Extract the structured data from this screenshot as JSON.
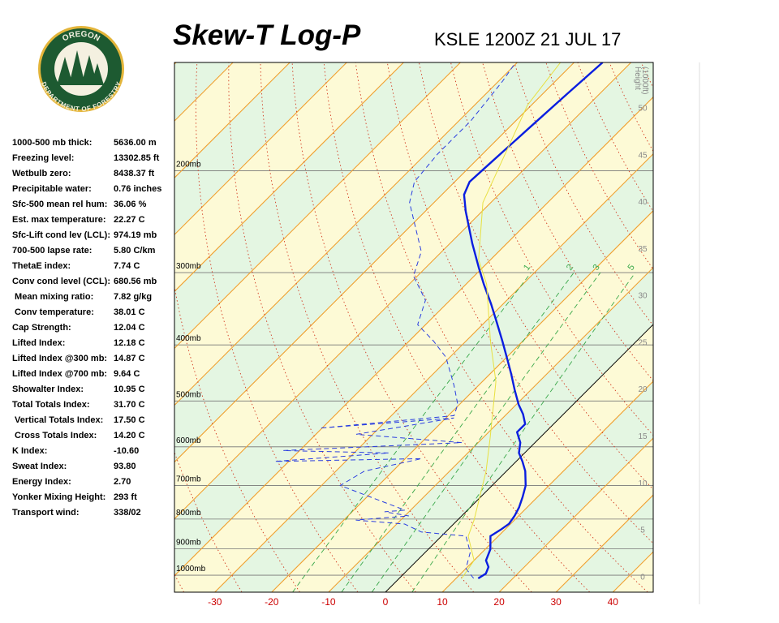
{
  "logo": {
    "top": "OREGON",
    "bottom": "DEPARTMENT OF FORESTRY"
  },
  "stats": [
    {
      "label": "1000-500 mb thick:",
      "value": "5636.00 m"
    },
    {
      "label": "Freezing level:",
      "value": "13302.85 ft"
    },
    {
      "label": "Wetbulb zero:",
      "value": "8438.37 ft"
    },
    {
      "label": "Precipitable water:",
      "value": "0.76 inches"
    },
    {
      "label": "Sfc-500 mean rel hum:",
      "value": "36.06 %"
    },
    {
      "label": "Est. max temperature:",
      "value": "22.27 C"
    },
    {
      "label": "Sfc-Lift cond lev (LCL):",
      "value": "974.19 mb"
    },
    {
      "label": "700-500 lapse rate:",
      "value": "5.80 C/km"
    },
    {
      "label": "ThetaE index:",
      "value": "7.74 C"
    },
    {
      "label": "Conv cond level (CCL):",
      "value": "680.56 mb"
    },
    {
      "label": " Mean mixing ratio:",
      "value": "7.82 g/kg"
    },
    {
      "label": " Conv temperature:",
      "value": "38.01 C"
    },
    {
      "label": "Cap Strength:",
      "value": "12.04 C"
    },
    {
      "label": "Lifted Index:",
      "value": "12.18 C"
    },
    {
      "label": "Lifted Index @300 mb:",
      "value": "14.87 C"
    },
    {
      "label": "Lifted Index @700 mb:",
      "value": "9.64 C"
    },
    {
      "label": "Showalter Index:",
      "value": "10.95 C"
    },
    {
      "label": "Total Totals Index:",
      "value": "31.70 C"
    },
    {
      "label": " Vertical Totals Index:",
      "value": "17.50 C"
    },
    {
      "label": " Cross Totals Index:",
      "value": "14.20 C"
    },
    {
      "label": "K Index:",
      "value": "-10.60"
    },
    {
      "label": "Sweat Index:",
      "value": "93.80"
    },
    {
      "label": "Energy Index:",
      "value": "2.70"
    },
    {
      "label": "Yonker Mixing Height:",
      "value": "293 ft"
    },
    {
      "label": "Transport wind:",
      "value": "338/02"
    }
  ],
  "chart_data": {
    "type": "skew-t",
    "title": "Skew-T Log-P",
    "subtitle": "KSLE 1200Z 21 JUL 17",
    "xlim": [
      -37.1,
      47.1
    ],
    "xticks": [
      -30,
      -20,
      -10,
      0,
      10,
      20,
      30,
      40
    ],
    "ylim": [
      1070,
      130
    ],
    "log_y": true,
    "yticks": [
      {
        "value": 200,
        "label": "200mb"
      },
      {
        "value": 300,
        "label": "300mb"
      },
      {
        "value": 400,
        "label": "400mb"
      },
      {
        "value": 500,
        "label": "500mb"
      },
      {
        "value": 600,
        "label": "600mb"
      },
      {
        "value": 700,
        "label": "700mb"
      },
      {
        "value": 800,
        "label": "800mb"
      },
      {
        "value": 900,
        "label": "900mb"
      },
      {
        "value": 1000,
        "label": "1000mb"
      }
    ],
    "y3label": [
      "Height",
      "(1000ft)"
    ],
    "y3lim": [
      -1.7,
      54.8
    ],
    "y3ticks": [
      0,
      5,
      10,
      15,
      20,
      25,
      30,
      35,
      40,
      45,
      50
    ],
    "mixing_ratios": [
      1,
      2,
      3,
      5
    ],
    "series": [
      {
        "color": "#0a1ee0",
        "dash": false,
        "width": 2.4,
        "pressure": [
          1013,
          994,
          968,
          943,
          902,
          856,
          834,
          815,
          790,
          764,
          733,
          700,
          661,
          636,
          615,
          590,
          566,
          548,
          527,
          507,
          478,
          448,
          420,
          394,
          363,
          340,
          314,
          294,
          267,
          235,
          220,
          209,
          196,
          169,
          147,
          130
        ],
        "values": [
          13.9,
          14.4,
          13.7,
          12.1,
          10.9,
          8.6,
          9.3,
          9.7,
          9.3,
          8.6,
          7.4,
          5.9,
          3.3,
          1.1,
          -1,
          -2.6,
          -5,
          -5,
          -7.1,
          -9.6,
          -12.9,
          -16.4,
          -20,
          -23.6,
          -28.3,
          -32.1,
          -36.9,
          -40.7,
          -46.1,
          -52.9,
          -56.1,
          -57.4,
          -57.1,
          -56.4,
          -55.7,
          -55
        ]
      },
      {
        "color": "#2a3ee0",
        "dash": true,
        "width": 1,
        "pressure": [
          1013,
          974,
          913,
          856,
          842,
          816,
          803,
          790,
          777,
          772,
          700,
          661,
          629,
          636,
          615,
          609,
          590,
          571,
          535,
          557,
          530,
          507,
          470,
          420,
          394,
          369,
          335,
          304,
          276,
          227,
          209,
          187,
          164,
          140,
          130
        ],
        "values": [
          13.1,
          10,
          7.9,
          4.3,
          -4.3,
          -8.6,
          -17.9,
          -9.3,
          -14.3,
          -11,
          -26.7,
          -25,
          -17.1,
          -42.4,
          -23.9,
          -42.9,
          -12.9,
          -32.9,
          -18.6,
          -40.4,
          -19,
          -20.3,
          -24.3,
          -30.7,
          -35.7,
          -41.4,
          -44.3,
          -50.7,
          -53.6,
          -64.3,
          -67.1,
          -67.9,
          -67.9,
          -69.3,
          -70.3
        ]
      },
      {
        "color": "#e8e040",
        "dash": false,
        "width": 1,
        "pressure": [
          1013,
          943,
          856,
          803,
          661,
          581,
          463,
          394,
          314,
          285,
          227,
          154,
          130
        ],
        "values": [
          11,
          10,
          4.7,
          2.9,
          -3.6,
          -8.6,
          -17.6,
          -25.7,
          -36.4,
          -42.1,
          -51.4,
          -60.7,
          -62.4
        ]
      }
    ]
  }
}
